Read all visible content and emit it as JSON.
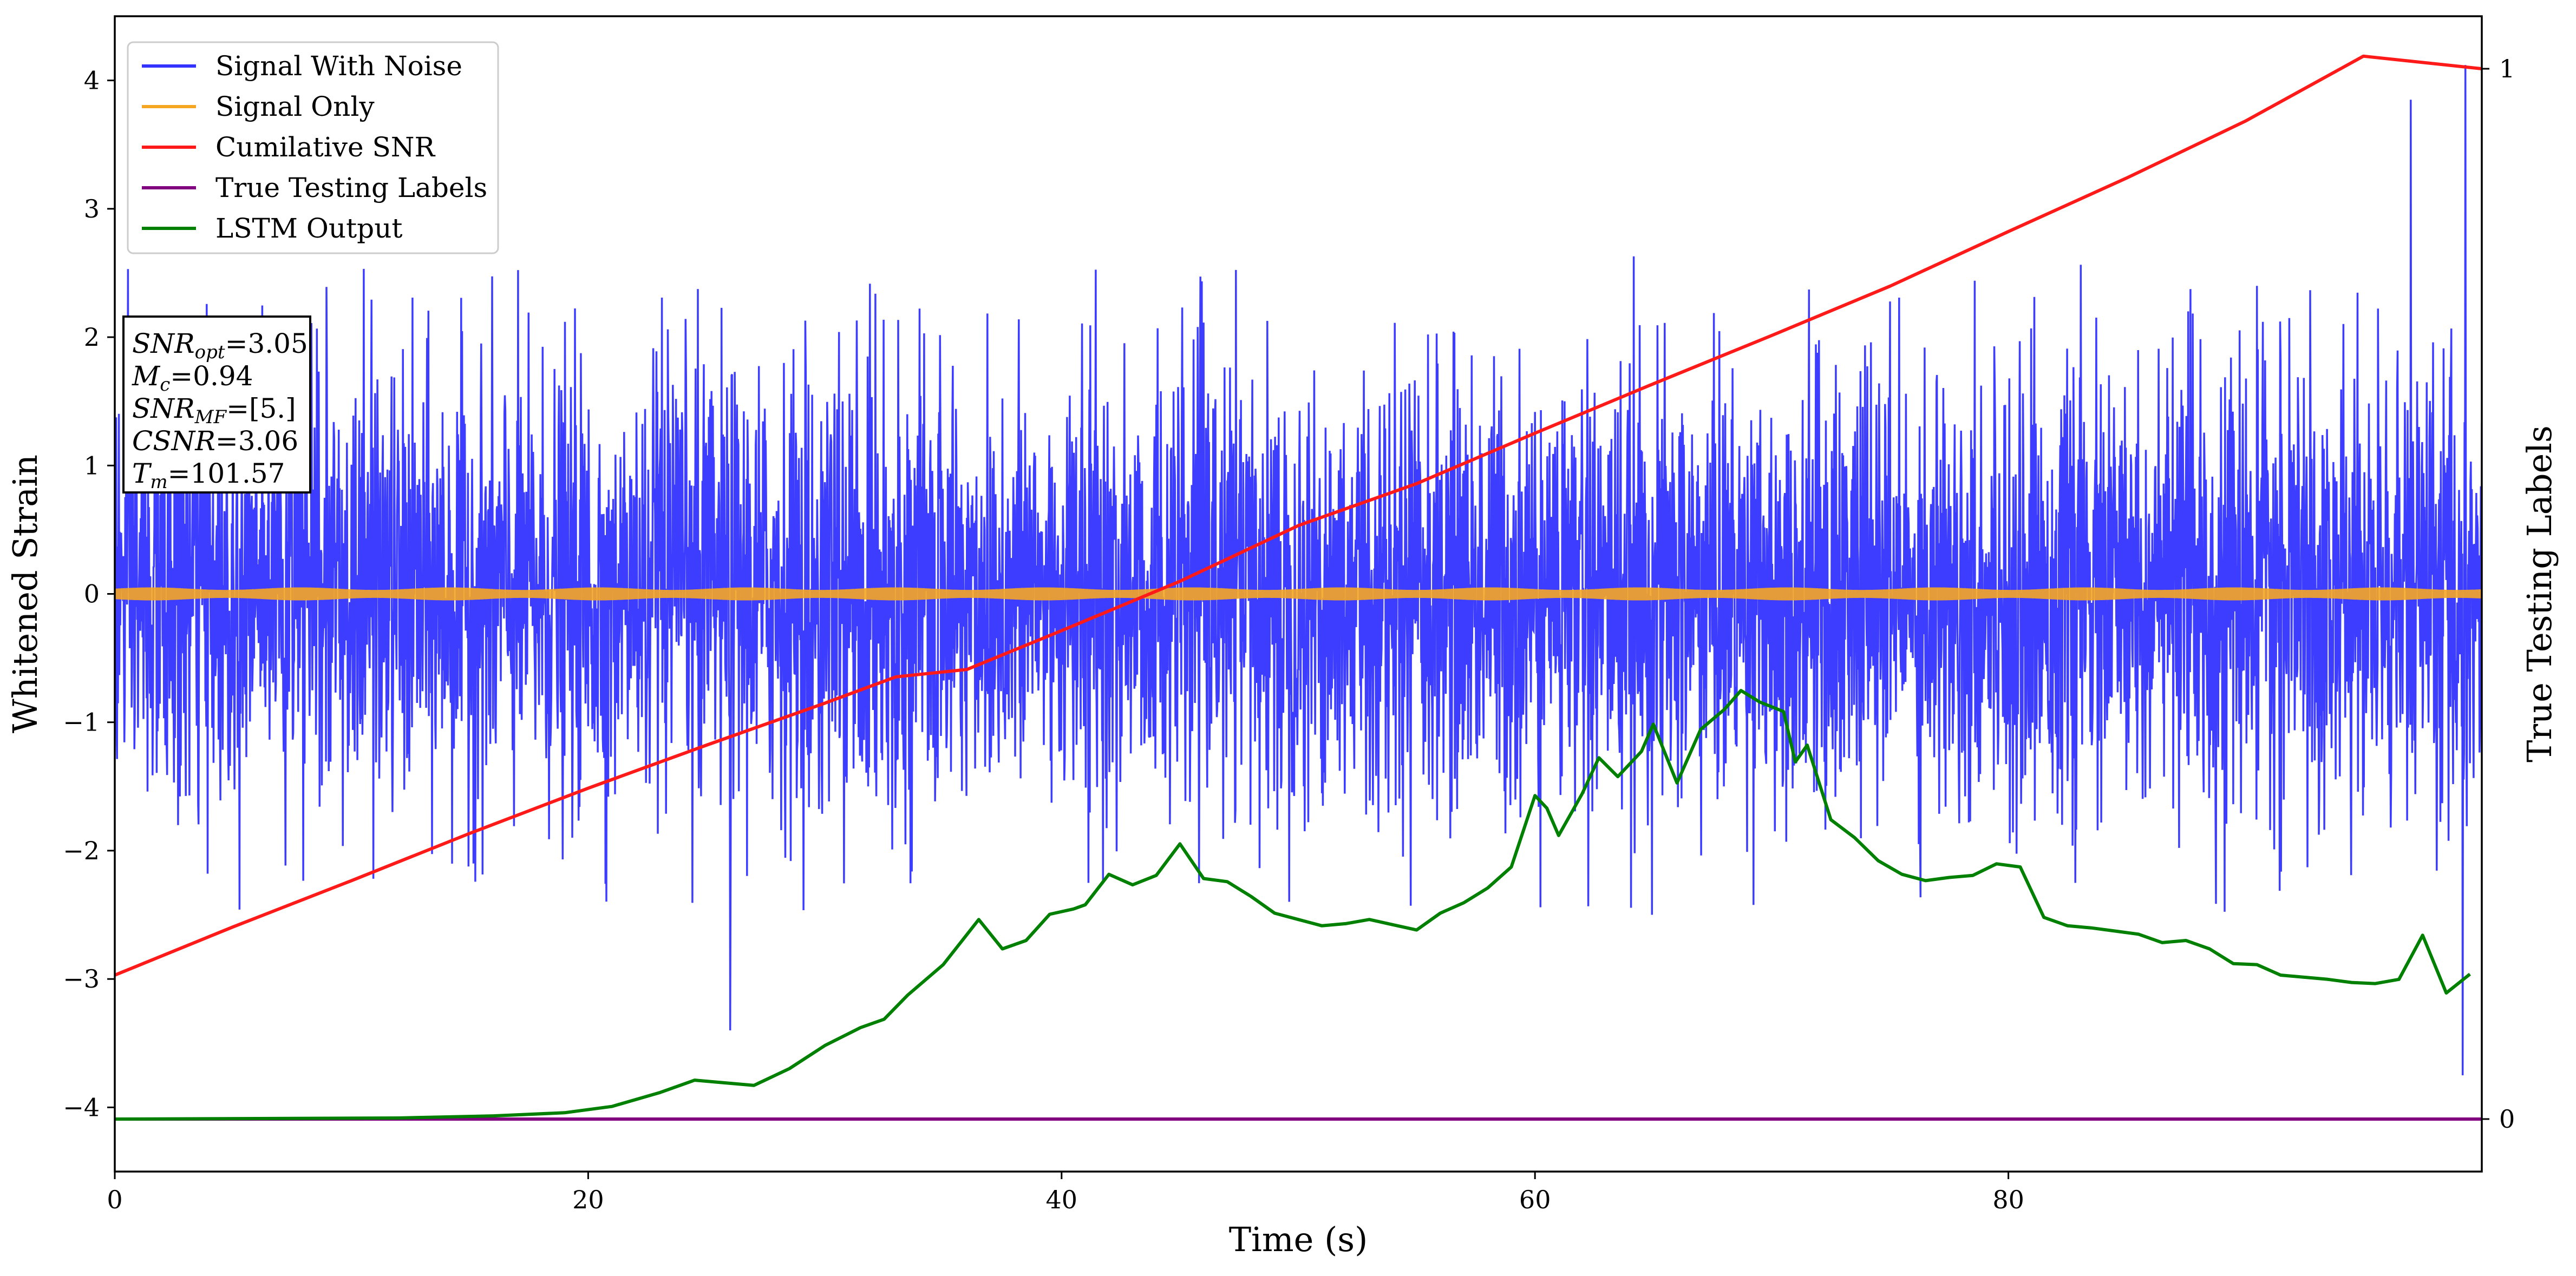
{
  "chart_data": {
    "type": "line",
    "title": "",
    "xlabel": "Time (s)",
    "ylabel": "Whitened Strain",
    "ylabel_right": "True Testing Labels",
    "xlim": [
      0,
      100
    ],
    "ylim": [
      -4.5,
      4.5
    ],
    "ylim_right": [
      -0.05,
      1.05
    ],
    "x_ticks": [
      0,
      20,
      40,
      60,
      80
    ],
    "y_ticks": [
      -4,
      -3,
      -2,
      -1,
      0,
      1,
      2,
      3,
      4
    ],
    "y_ticks_right": [
      0,
      1
    ],
    "grid": false,
    "legend_position": "upper-left",
    "colors": {
      "signal_with_noise": "#3333ff",
      "signal_only": "#f5a623",
      "cumulative_snr": "#ff1a1a",
      "true_labels": "#800080",
      "lstm_output": "#008000"
    },
    "series": [
      {
        "name": "Signal With Noise",
        "axis": "left",
        "description_of_values": "noise centered at 0, mostly within about -2.5 to 2.7, peaks near 4.1 at t=99.3 and -3.7 at t=99.2",
        "x_range": [
          0,
          100
        ],
        "extremes": {
          "max": 4.12,
          "min": -3.75
        }
      },
      {
        "name": "Signal Only",
        "axis": "left",
        "x_range": [
          0,
          100
        ],
        "amplitude": 0.05
      },
      {
        "name": "Cumilative SNR",
        "axis": "right",
        "x": [
          0,
          5,
          10,
          15,
          20,
          25,
          30,
          33,
          36,
          40,
          45,
          50,
          55,
          60,
          65,
          70,
          75,
          80,
          85,
          90,
          95,
          100
        ],
        "y": [
          0.137,
          0.183,
          0.227,
          0.272,
          0.315,
          0.356,
          0.396,
          0.421,
          0.428,
          0.465,
          0.512,
          0.565,
          0.605,
          0.653,
          0.7,
          0.746,
          0.793,
          0.845,
          0.896,
          0.95,
          1.012,
          1.0
        ]
      },
      {
        "name": "True Testing Labels",
        "axis": "right",
        "x": [
          0,
          100
        ],
        "y": [
          0,
          0
        ]
      },
      {
        "name": "LSTM Output",
        "axis": "right",
        "x": [
          0,
          12,
          16,
          19,
          21,
          23,
          24.5,
          27,
          28.5,
          30,
          31.5,
          32.5,
          33.5,
          35,
          36.5,
          37.5,
          38.5,
          39.5,
          40.5,
          41,
          42,
          43,
          44,
          45,
          46,
          47,
          48,
          49,
          50,
          51,
          52,
          53,
          54,
          55,
          56,
          57,
          58,
          59,
          60,
          60.5,
          61,
          62,
          62.7,
          63.5,
          64.5,
          65,
          66,
          67,
          68,
          68.7,
          69.5,
          70.5,
          71,
          71.5,
          72.5,
          73.5,
          74.5,
          75.5,
          76.5,
          77.5,
          78.5,
          79.5,
          80.5,
          81.5,
          82.5,
          83.5,
          84.5,
          85.5,
          86.5,
          87.5,
          88.5,
          89.5,
          90.5,
          91.5,
          92.5,
          93.5,
          94.5,
          95.5,
          96.5,
          97.5,
          98.5,
          99.5
        ],
        "y": [
          0.0,
          0.001,
          0.003,
          0.006,
          0.012,
          0.025,
          0.037,
          0.032,
          0.048,
          0.07,
          0.087,
          0.095,
          0.118,
          0.147,
          0.19,
          0.162,
          0.17,
          0.195,
          0.2,
          0.204,
          0.233,
          0.223,
          0.232,
          0.262,
          0.229,
          0.226,
          0.212,
          0.196,
          0.19,
          0.184,
          0.186,
          0.19,
          0.185,
          0.18,
          0.196,
          0.206,
          0.22,
          0.24,
          0.308,
          0.296,
          0.27,
          0.31,
          0.344,
          0.326,
          0.35,
          0.376,
          0.32,
          0.371,
          0.39,
          0.408,
          0.397,
          0.388,
          0.34,
          0.356,
          0.285,
          0.268,
          0.246,
          0.233,
          0.227,
          0.23,
          0.232,
          0.243,
          0.24,
          0.192,
          0.184,
          0.182,
          0.179,
          0.176,
          0.168,
          0.17,
          0.162,
          0.148,
          0.147,
          0.137,
          0.135,
          0.133,
          0.13,
          0.129,
          0.133,
          0.175,
          0.12,
          0.138
        ]
      }
    ],
    "annotation_box": [
      {
        "base": "SNR",
        "sub": "opt",
        "value": "=3.05"
      },
      {
        "base": "M",
        "sub": "c",
        "value": "=0.94"
      },
      {
        "base": "SNR",
        "sub": "MF",
        "value": "=[5.]"
      },
      {
        "base": "CSNR",
        "sub": "",
        "value": "=3.06"
      },
      {
        "base": "T",
        "sub": "m",
        "value": "=101.57"
      }
    ]
  }
}
